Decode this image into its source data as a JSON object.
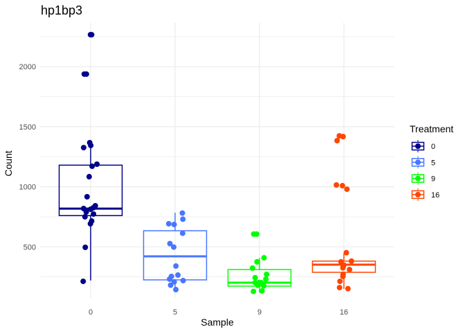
{
  "chart_data": {
    "type": "boxplot",
    "title": "hp1bp3",
    "xlabel": "Sample",
    "ylabel": "Count",
    "categories": [
      "0",
      "5",
      "9",
      "16"
    ],
    "y_ticks": [
      500,
      1000,
      1500,
      2000
    ],
    "ylim": [
      75,
      2365
    ],
    "grid": true,
    "legend": {
      "title": "Treatment",
      "position": "right",
      "entries": [
        "0",
        "5",
        "9",
        "16"
      ]
    },
    "colors": [
      "#00008B",
      "#4876FF",
      "#00FF00",
      "#FF4500"
    ],
    "boxes": [
      {
        "q1": 760,
        "median": 818,
        "q3": 1180,
        "whisker_low": 220,
        "whisker_high": 1330
      },
      {
        "q1": 225,
        "median": 421,
        "q3": 634,
        "whisker_low": 144,
        "whisker_high": 784
      },
      {
        "q1": 173,
        "median": 202,
        "q3": 311,
        "whisker_low": 121,
        "whisker_high": 409
      },
      {
        "q1": 288,
        "median": 352,
        "q3": 381,
        "whisker_low": 150,
        "whisker_high": 444
      }
    ],
    "points": [
      [
        2266,
        2266,
        1938,
        1938,
        1367,
        1344,
        1326,
        1188,
        1171,
        1084,
        917,
        842,
        825,
        819,
        813,
        790,
        773,
        750,
        715,
        692,
        496,
        213
      ],
      [
        781,
        730,
        692,
        686,
        613,
        527,
        498,
        340,
        265,
        254,
        231,
        219,
        208,
        181,
        144
      ],
      [
        606,
        606,
        409,
        375,
        375,
        323,
        271,
        244,
        231,
        202,
        202,
        202,
        181,
        175,
        133,
        129
      ],
      [
        1424,
        1418,
        1384,
        1015,
        1009,
        980,
        451,
        381,
        375,
        348,
        348,
        325,
        311,
        271,
        254,
        213,
        161,
        152
      ]
    ]
  }
}
